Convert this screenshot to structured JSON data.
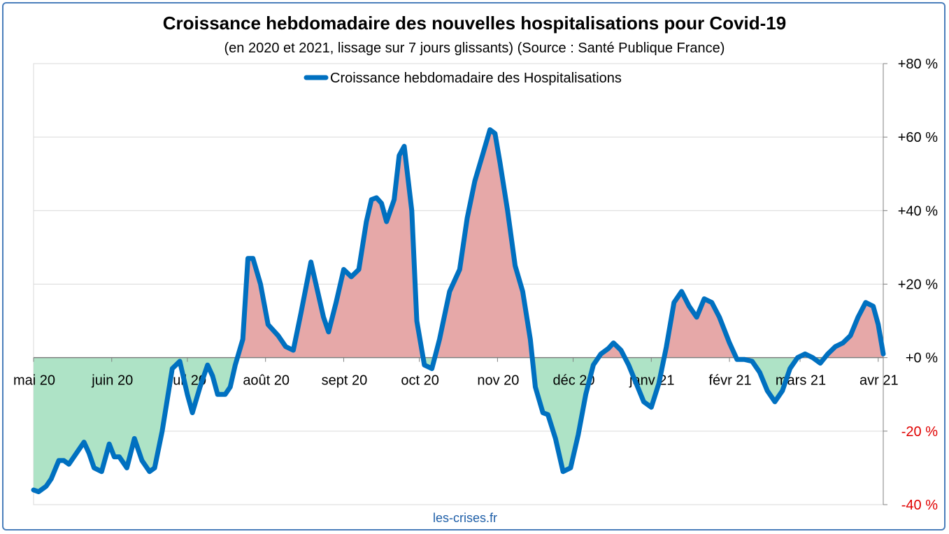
{
  "chart_data": {
    "type": "area",
    "title": "Croissance hebdomadaire des nouvelles hospitalisations pour Covid-19",
    "subtitle": "(en 2020 et 2021, lissage sur 7 jours glissants) (Source : Santé Publique France)",
    "source_note": "les-crises.fr",
    "ylim": [
      -40,
      80
    ],
    "y_ticks": [
      {
        "value": 80,
        "label": "+80 %"
      },
      {
        "value": 60,
        "label": "+60 %"
      },
      {
        "value": 40,
        "label": "+40 %"
      },
      {
        "value": 20,
        "label": "+20 %"
      },
      {
        "value": 0,
        "label": "+0 %"
      },
      {
        "value": -20,
        "label": "-20 %"
      },
      {
        "value": -40,
        "label": "-40 %"
      }
    ],
    "x_ticks": [
      {
        "date": "2020-05-01",
        "label": "mai 20"
      },
      {
        "date": "2020-06-01",
        "label": "juin 20"
      },
      {
        "date": "2020-07-01",
        "label": "juil 20"
      },
      {
        "date": "2020-08-01",
        "label": "août 20"
      },
      {
        "date": "2020-09-01",
        "label": "sept 20"
      },
      {
        "date": "2020-10-01",
        "label": "oct 20"
      },
      {
        "date": "2020-11-01",
        "label": "nov 20"
      },
      {
        "date": "2020-12-01",
        "label": "déc 20"
      },
      {
        "date": "2021-01-01",
        "label": "janv 21"
      },
      {
        "date": "2021-02-01",
        "label": "févr 21"
      },
      {
        "date": "2021-03-01",
        "label": "mars 21"
      },
      {
        "date": "2021-04-01",
        "label": "avr 21"
      }
    ],
    "x_range": [
      "2020-05-01",
      "2021-04-03"
    ],
    "grid": true,
    "legend_position": "top",
    "colors": {
      "line": "#0070c0",
      "positive_fill": "#e6a8a8",
      "negative_fill": "#aee3c6",
      "negative_tick": "#e00000",
      "grid": "#d9d9d9",
      "frame": "#4a7ebb"
    },
    "series": [
      {
        "name": "Croissance hebdomadaire des Hospitalisations",
        "points": [
          [
            "2020-05-01",
            -36
          ],
          [
            "2020-05-03",
            -36.5
          ],
          [
            "2020-05-06",
            -35
          ],
          [
            "2020-05-08",
            -33
          ],
          [
            "2020-05-11",
            -28
          ],
          [
            "2020-05-13",
            -28
          ],
          [
            "2020-05-15",
            -29
          ],
          [
            "2020-05-18",
            -26
          ],
          [
            "2020-05-21",
            -23
          ],
          [
            "2020-05-23",
            -26
          ],
          [
            "2020-05-25",
            -30
          ],
          [
            "2020-05-28",
            -31
          ],
          [
            "2020-05-31",
            -23.5
          ],
          [
            "2020-06-02",
            -27
          ],
          [
            "2020-06-04",
            -27
          ],
          [
            "2020-06-07",
            -30
          ],
          [
            "2020-06-10",
            -22
          ],
          [
            "2020-06-13",
            -28
          ],
          [
            "2020-06-16",
            -31
          ],
          [
            "2020-06-18",
            -30
          ],
          [
            "2020-06-21",
            -20
          ],
          [
            "2020-06-25",
            -3
          ],
          [
            "2020-06-28",
            -1
          ],
          [
            "2020-07-01",
            -10
          ],
          [
            "2020-07-03",
            -15
          ],
          [
            "2020-07-06",
            -8
          ],
          [
            "2020-07-09",
            -2
          ],
          [
            "2020-07-11",
            -5
          ],
          [
            "2020-07-13",
            -10
          ],
          [
            "2020-07-16",
            -10
          ],
          [
            "2020-07-18",
            -8
          ],
          [
            "2020-07-20",
            -2
          ],
          [
            "2020-07-23",
            5
          ],
          [
            "2020-07-25",
            27
          ],
          [
            "2020-07-27",
            27
          ],
          [
            "2020-07-30",
            20
          ],
          [
            "2020-08-02",
            9
          ],
          [
            "2020-08-06",
            6
          ],
          [
            "2020-08-09",
            3
          ],
          [
            "2020-08-12",
            2
          ],
          [
            "2020-08-15",
            12
          ],
          [
            "2020-08-19",
            26
          ],
          [
            "2020-08-24",
            11
          ],
          [
            "2020-08-26",
            7
          ],
          [
            "2020-08-29",
            15
          ],
          [
            "2020-09-01",
            24
          ],
          [
            "2020-09-04",
            22
          ],
          [
            "2020-09-07",
            24
          ],
          [
            "2020-09-10",
            37
          ],
          [
            "2020-09-12",
            43
          ],
          [
            "2020-09-14",
            43.5
          ],
          [
            "2020-09-16",
            42
          ],
          [
            "2020-09-18",
            37
          ],
          [
            "2020-09-21",
            43
          ],
          [
            "2020-09-23",
            55
          ],
          [
            "2020-09-25",
            57.5
          ],
          [
            "2020-09-28",
            40
          ],
          [
            "2020-09-30",
            10
          ],
          [
            "2020-10-03",
            -2
          ],
          [
            "2020-10-06",
            -3
          ],
          [
            "2020-10-09",
            5
          ],
          [
            "2020-10-13",
            18
          ],
          [
            "2020-10-17",
            24
          ],
          [
            "2020-10-20",
            38
          ],
          [
            "2020-10-23",
            48
          ],
          [
            "2020-10-26",
            55
          ],
          [
            "2020-10-29",
            62
          ],
          [
            "2020-10-31",
            61
          ],
          [
            "2020-11-02",
            53
          ],
          [
            "2020-11-05",
            40
          ],
          [
            "2020-11-08",
            25
          ],
          [
            "2020-11-11",
            18
          ],
          [
            "2020-11-14",
            5
          ],
          [
            "2020-11-16",
            -8
          ],
          [
            "2020-11-19",
            -15
          ],
          [
            "2020-11-21",
            -15.5
          ],
          [
            "2020-11-24",
            -22
          ],
          [
            "2020-11-27",
            -31
          ],
          [
            "2020-11-30",
            -30
          ],
          [
            "2020-12-03",
            -21
          ],
          [
            "2020-12-06",
            -10
          ],
          [
            "2020-12-09",
            -2
          ],
          [
            "2020-12-12",
            1
          ],
          [
            "2020-12-15",
            2.5
          ],
          [
            "2020-12-17",
            4
          ],
          [
            "2020-12-20",
            2
          ],
          [
            "2020-12-23",
            -2
          ],
          [
            "2020-12-26",
            -7
          ],
          [
            "2020-12-29",
            -12
          ],
          [
            "2021-01-01",
            -13.5
          ],
          [
            "2021-01-04",
            -7
          ],
          [
            "2021-01-07",
            3
          ],
          [
            "2021-01-10",
            15
          ],
          [
            "2021-01-13",
            18
          ],
          [
            "2021-01-16",
            14
          ],
          [
            "2021-01-19",
            11
          ],
          [
            "2021-01-22",
            16
          ],
          [
            "2021-01-25",
            15
          ],
          [
            "2021-01-28",
            11
          ],
          [
            "2021-02-01",
            4
          ],
          [
            "2021-02-04",
            -0.5
          ],
          [
            "2021-02-07",
            -0.5
          ],
          [
            "2021-02-10",
            -1
          ],
          [
            "2021-02-13",
            -4
          ],
          [
            "2021-02-16",
            -9
          ],
          [
            "2021-02-19",
            -12
          ],
          [
            "2021-02-22",
            -9
          ],
          [
            "2021-02-25",
            -3
          ],
          [
            "2021-02-28",
            0
          ],
          [
            "2021-03-03",
            1
          ],
          [
            "2021-03-06",
            0
          ],
          [
            "2021-03-09",
            -1.5
          ],
          [
            "2021-03-12",
            1
          ],
          [
            "2021-03-15",
            3
          ],
          [
            "2021-03-18",
            4
          ],
          [
            "2021-03-21",
            6
          ],
          [
            "2021-03-24",
            11
          ],
          [
            "2021-03-27",
            15
          ],
          [
            "2021-03-30",
            14
          ],
          [
            "2021-04-01",
            9
          ],
          [
            "2021-04-03",
            1
          ]
        ]
      }
    ]
  }
}
